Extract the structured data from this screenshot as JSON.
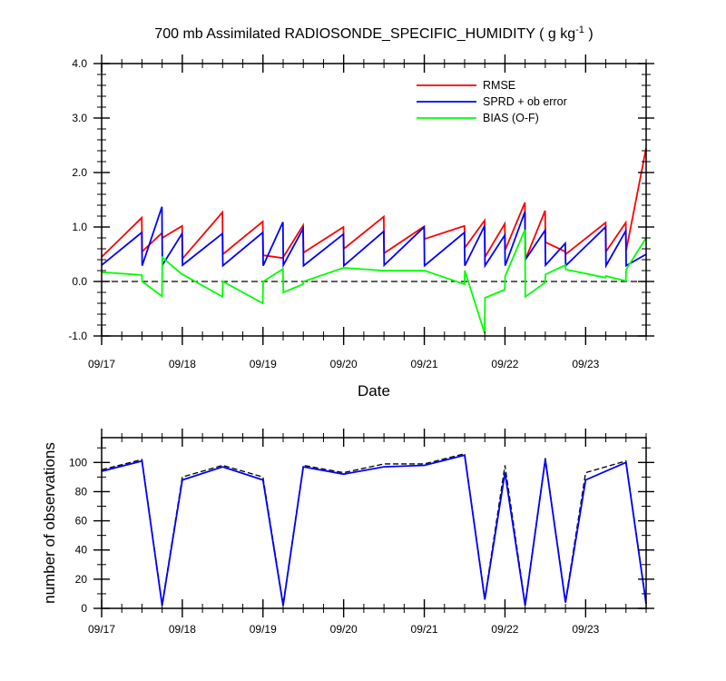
{
  "title": {
    "main": "700 mb Assimilated RADIOSONDE_SPECIFIC_HUMIDITY ( g kg",
    "sup": "-1",
    "end": " )"
  },
  "chart_data": [
    {
      "type": "line",
      "title": "700 mb Assimilated RADIOSONDE_SPECIFIC_HUMIDITY ( g kg-1 )",
      "xlabel": "Date",
      "ylabel": "",
      "ylim": [
        -1.0,
        4.0
      ],
      "xlim": [
        0,
        27
      ],
      "x_major_ticks": [
        0,
        4,
        8,
        12,
        16,
        20,
        24
      ],
      "x_tick_labels": [
        "09/17",
        "09/18",
        "09/19",
        "09/20",
        "09/21",
        "09/22",
        "09/23"
      ],
      "y_ticks": [
        -1.0,
        0.0,
        1.0,
        2.0,
        3.0,
        4.0
      ],
      "y_tick_labels": [
        "-1.0",
        "0.0",
        "1.0",
        "2.0",
        "3.0",
        "4.0"
      ],
      "legend": [
        "RMSE",
        "SPRD + ob error",
        "BIAS (O-F)"
      ],
      "legend_position": "top-right",
      "zero_line": true,
      "series": [
        {
          "name": "RMSE",
          "color": "#ff0000",
          "x": [
            0.0,
            1.99,
            2.01,
            2.99,
            3.01,
            3.99,
            4.01,
            5.99,
            6.01,
            7.99,
            8.01,
            8.99,
            9.01,
            9.99,
            10.01,
            11.99,
            12.01,
            13.99,
            14.01,
            15.99,
            16.01,
            17.99,
            18.01,
            18.99,
            19.01,
            19.99,
            20.01,
            20.99,
            21.01,
            21.99,
            22.01,
            22.99,
            23.01,
            24.99,
            25.01,
            25.99,
            26.01,
            27.0
          ],
          "values": [
            0.45,
            1.17,
            0.55,
            0.89,
            0.8,
            1.02,
            0.42,
            1.27,
            0.5,
            1.1,
            0.48,
            0.43,
            0.45,
            1.03,
            0.53,
            1.0,
            0.6,
            1.19,
            0.52,
            1.01,
            0.78,
            1.02,
            0.62,
            1.12,
            0.45,
            1.06,
            0.58,
            1.45,
            0.4,
            1.3,
            0.72,
            0.55,
            0.5,
            1.08,
            0.55,
            1.08,
            0.57,
            2.45
          ]
        },
        {
          "name": "SPRD + ob error",
          "color": "#0000ff",
          "x": [
            0.0,
            1.99,
            2.01,
            2.99,
            3.01,
            3.99,
            4.01,
            5.99,
            6.01,
            7.99,
            8.01,
            8.99,
            9.01,
            9.99,
            10.01,
            11.99,
            12.01,
            13.99,
            14.01,
            15.99,
            16.01,
            17.99,
            18.01,
            18.99,
            19.01,
            19.99,
            20.01,
            20.99,
            21.01,
            21.99,
            22.01,
            22.99,
            23.01,
            24.99,
            25.01,
            25.99,
            26.01,
            27.0
          ],
          "values": [
            0.3,
            0.9,
            0.29,
            1.37,
            0.3,
            0.88,
            0.3,
            0.88,
            0.29,
            0.9,
            0.29,
            1.09,
            0.3,
            0.97,
            0.29,
            0.87,
            0.29,
            0.92,
            0.3,
            1.0,
            0.29,
            0.9,
            0.29,
            1.02,
            0.29,
            0.85,
            0.29,
            1.28,
            0.4,
            0.94,
            0.3,
            0.7,
            0.29,
            1.0,
            0.29,
            0.93,
            0.29,
            0.5
          ]
        },
        {
          "name": "BIAS (O-F)",
          "color": "#00ff00",
          "x": [
            0.0,
            1.99,
            2.01,
            2.99,
            3.01,
            3.99,
            4.01,
            5.99,
            6.01,
            7.99,
            8.01,
            8.99,
            9.01,
            9.99,
            10.01,
            11.99,
            12.01,
            13.99,
            14.01,
            15.99,
            16.01,
            17.99,
            18.01,
            18.99,
            19.01,
            19.99,
            20.01,
            20.99,
            21.01,
            21.99,
            22.01,
            22.99,
            23.01,
            24.99,
            25.01,
            25.99,
            26.01,
            27.0
          ],
          "values": [
            0.17,
            0.12,
            0.0,
            -0.27,
            0.44,
            0.13,
            0.13,
            -0.28,
            0.0,
            -0.4,
            0.0,
            0.23,
            -0.2,
            -0.05,
            0.0,
            0.25,
            0.25,
            0.2,
            0.2,
            0.2,
            0.2,
            -0.05,
            0.2,
            -0.95,
            -0.3,
            -0.15,
            0.1,
            0.95,
            -0.28,
            -0.02,
            0.13,
            0.3,
            0.22,
            0.07,
            0.1,
            0.01,
            0.22,
            0.8
          ]
        }
      ]
    },
    {
      "type": "line",
      "title": "",
      "xlabel": "",
      "ylabel": "number of observations",
      "ylim": [
        0,
        117
      ],
      "xlim": [
        0,
        27
      ],
      "x_major_ticks": [
        0,
        4,
        8,
        12,
        16,
        20,
        24
      ],
      "x_tick_labels": [
        "09/17",
        "09/18",
        "09/19",
        "09/20",
        "09/21",
        "09/22",
        "09/23"
      ],
      "y_ticks": [
        0,
        20,
        40,
        60,
        80,
        100
      ],
      "y_tick_labels": [
        "0",
        "20",
        "40",
        "60",
        "80",
        "100"
      ],
      "series": [
        {
          "name": "observations (dashed)",
          "color": "#000000",
          "dashed": true,
          "x": [
            0,
            2,
            3,
            4,
            6,
            8,
            9,
            10,
            12,
            14,
            16,
            18,
            19,
            20,
            21,
            22,
            23,
            24,
            26,
            27
          ],
          "values": [
            95,
            102,
            3,
            90,
            98,
            90,
            3,
            98,
            93,
            99,
            99,
            106,
            7,
            98,
            3,
            103,
            5,
            93,
            101,
            4
          ]
        },
        {
          "name": "observations",
          "color": "#0000ff",
          "x": [
            0,
            2,
            3,
            4,
            6,
            8,
            9,
            10,
            12,
            14,
            16,
            18,
            19,
            20,
            21,
            22,
            23,
            24,
            26,
            27
          ],
          "values": [
            94,
            101,
            2,
            88,
            97,
            88,
            2,
            97,
            92,
            97,
            98,
            105,
            6,
            93,
            2,
            102,
            4,
            88,
            100,
            3
          ]
        }
      ]
    }
  ]
}
